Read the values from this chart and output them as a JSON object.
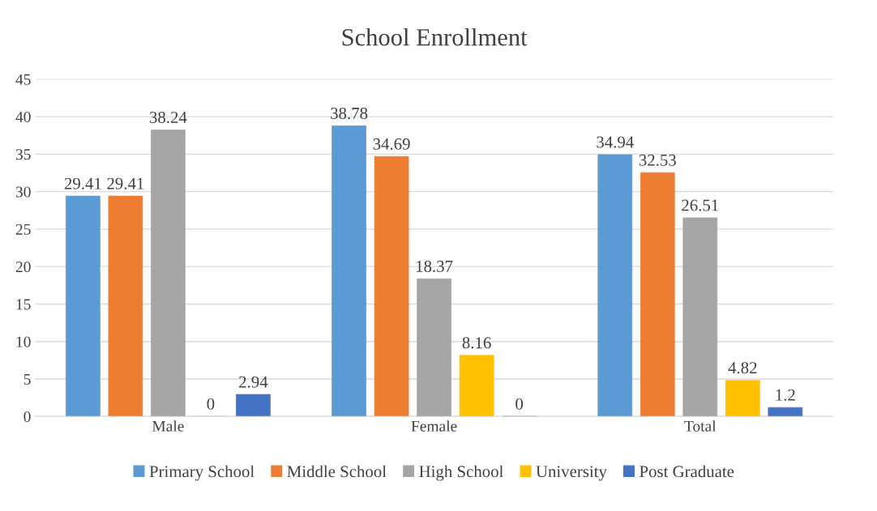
{
  "chart_data": {
    "type": "bar",
    "title": "School Enrollment",
    "categories": [
      "Male",
      "Female",
      "Total"
    ],
    "series": [
      {
        "name": "Primary School",
        "color": "#5b9bd5",
        "values": [
          29.41,
          38.78,
          34.94
        ]
      },
      {
        "name": "Middle School",
        "color": "#ed7d31",
        "values": [
          29.41,
          34.69,
          32.53
        ]
      },
      {
        "name": "High School",
        "color": "#a5a5a5",
        "values": [
          38.24,
          18.37,
          26.51
        ]
      },
      {
        "name": "University",
        "color": "#ffc000",
        "values": [
          0,
          8.16,
          4.82
        ]
      },
      {
        "name": "Post Graduate",
        "color": "#4472c4",
        "values": [
          2.94,
          0,
          1.2
        ]
      }
    ],
    "ylim": [
      0,
      45
    ],
    "yticks": [
      0,
      5,
      10,
      15,
      20,
      25,
      30,
      35,
      40,
      45
    ],
    "grid": "y",
    "legend": "bottom",
    "data_labels": true
  }
}
